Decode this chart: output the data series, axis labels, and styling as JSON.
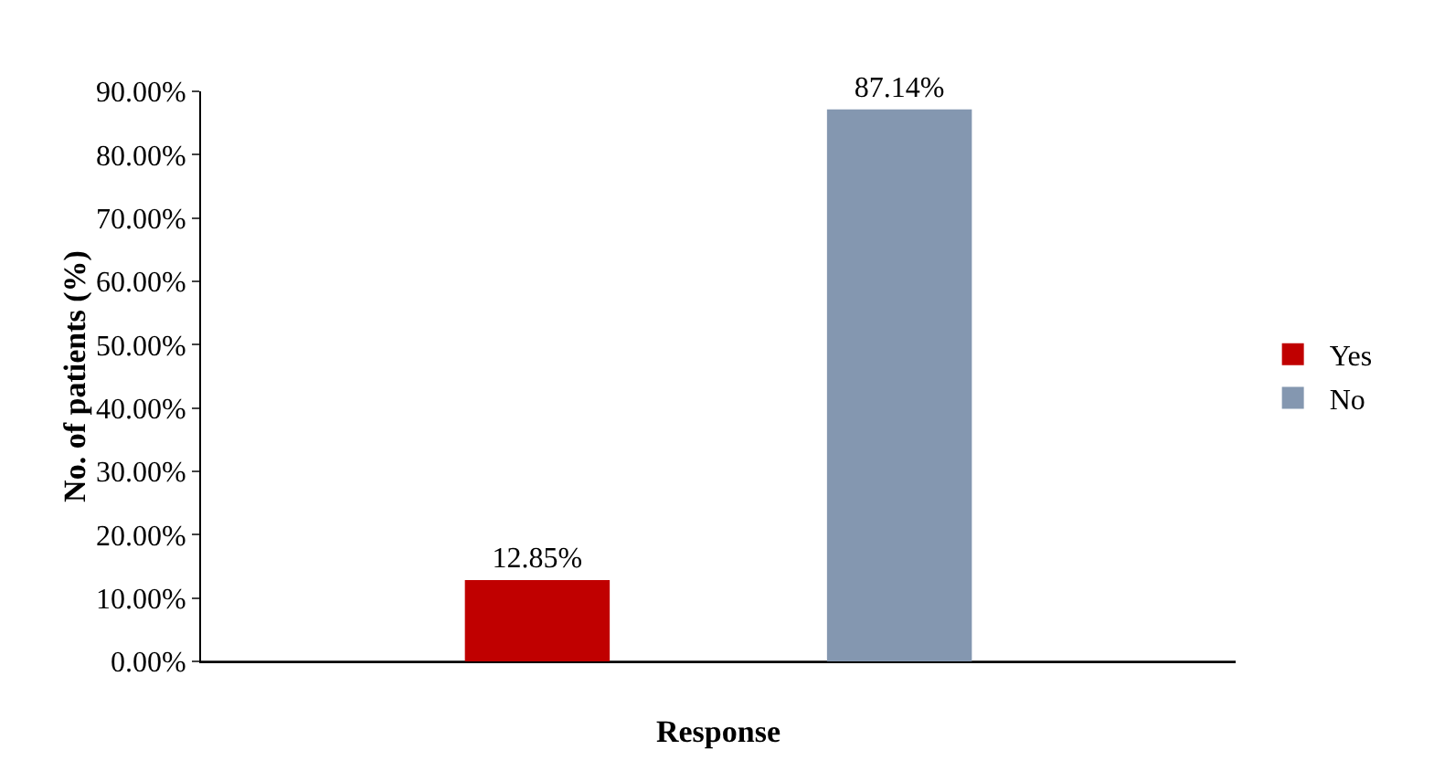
{
  "chart_data": {
    "type": "bar",
    "xlabel": "Response",
    "ylabel": "No. of patients (%)",
    "categories": [
      null
    ],
    "series": [
      {
        "name": "Yes",
        "color": "#c00000",
        "values": [
          12.85
        ],
        "value_labels": [
          "12.85%"
        ]
      },
      {
        "name": "No",
        "color": "#8497b0",
        "values": [
          87.14
        ],
        "value_labels": [
          "87.14%"
        ]
      }
    ],
    "ylim": [
      0,
      90
    ],
    "yticks": [
      {
        "value": 0,
        "label": "0.00%"
      },
      {
        "value": 10,
        "label": "10.00%"
      },
      {
        "value": 20,
        "label": "20.00%"
      },
      {
        "value": 30,
        "label": "30.00%"
      },
      {
        "value": 40,
        "label": "40.00%"
      },
      {
        "value": 50,
        "label": "50.00%"
      },
      {
        "value": 60,
        "label": "60.00%"
      },
      {
        "value": 70,
        "label": "70.00%"
      },
      {
        "value": 80,
        "label": "80.00%"
      },
      {
        "value": 90,
        "label": "90.00%"
      }
    ],
    "grid": false,
    "legend": "right",
    "tick_labels": "y"
  }
}
